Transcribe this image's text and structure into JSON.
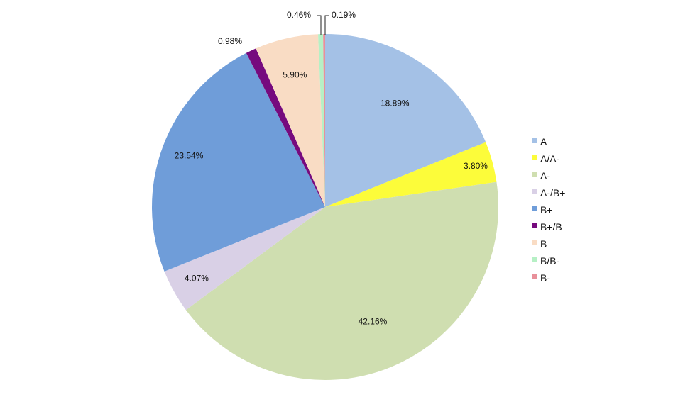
{
  "chart_data": {
    "type": "pie",
    "title": "",
    "categories": [
      "A",
      "A/A-",
      "A-",
      "A-/B+",
      "B+",
      "B+/B",
      "B",
      "B/B-",
      "B-"
    ],
    "values": [
      18.89,
      3.8,
      42.16,
      4.07,
      23.54,
      0.98,
      5.9,
      0.46,
      0.19
    ],
    "labels": [
      "18.89%",
      "3.80%",
      "42.16%",
      "4.07%",
      "23.54%",
      "0.98%",
      "5.90%",
      "0.46%",
      "0.19%"
    ],
    "colors": [
      "#a4c1e6",
      "#fcfc3a",
      "#cfdeb0",
      "#d9d0e6",
      "#6f9dd9",
      "#760a7e",
      "#f9dcc4",
      "#b6f0c5",
      "#e8909a"
    ],
    "start_angle_deg": 0,
    "direction": "clockwise",
    "legend_position": "right"
  },
  "legend": {
    "items": [
      {
        "label": "A",
        "color": "#a4c1e6"
      },
      {
        "label": "A/A-",
        "color": "#fcfc3a"
      },
      {
        "label": "A-",
        "color": "#cfdeb0"
      },
      {
        "label": "A-/B+",
        "color": "#d9d0e6"
      },
      {
        "label": "B+",
        "color": "#6f9dd9"
      },
      {
        "label": "B+/B",
        "color": "#760a7e"
      },
      {
        "label": "B",
        "color": "#f9dcc4"
      },
      {
        "label": "B/B-",
        "color": "#b6f0c5"
      },
      {
        "label": "B-",
        "color": "#e8909a"
      }
    ]
  }
}
